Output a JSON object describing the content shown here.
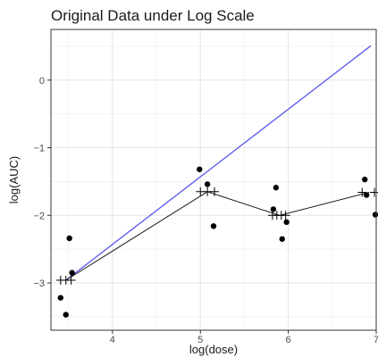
{
  "chart_data": {
    "type": "scatter",
    "title": "Original Data under Log Scale",
    "xlabel": "log(dose)",
    "ylabel": "log(AUC)",
    "xlim": [
      3.3,
      7.0
    ],
    "ylim": [
      -3.7,
      0.75
    ],
    "x_ticks": [
      4,
      5,
      6,
      7
    ],
    "y_ticks": [
      0,
      -1,
      -2,
      -3
    ],
    "grid": true,
    "points": [
      {
        "x": 3.41,
        "y": -3.22
      },
      {
        "x": 3.47,
        "y": -3.47
      },
      {
        "x": 3.51,
        "y": -2.34
      },
      {
        "x": 3.54,
        "y": -2.85
      },
      {
        "x": 4.99,
        "y": -1.32
      },
      {
        "x": 5.08,
        "y": -1.54
      },
      {
        "x": 5.15,
        "y": -2.16
      },
      {
        "x": 5.83,
        "y": -1.91
      },
      {
        "x": 5.86,
        "y": -1.59
      },
      {
        "x": 5.93,
        "y": -2.35
      },
      {
        "x": 5.98,
        "y": -2.1
      },
      {
        "x": 6.87,
        "y": -1.47
      },
      {
        "x": 6.89,
        "y": -1.7
      },
      {
        "x": 6.99,
        "y": -1.99
      }
    ],
    "mean_line": {
      "color": "#1a1a1a",
      "points": [
        {
          "x": 3.47,
          "y": -2.96
        },
        {
          "x": 5.08,
          "y": -1.65
        },
        {
          "x": 5.9,
          "y": -2.0
        },
        {
          "x": 6.92,
          "y": -1.66
        }
      ]
    },
    "crosses": [
      {
        "x": 3.41,
        "y": -2.96
      },
      {
        "x": 3.47,
        "y": -2.96
      },
      {
        "x": 3.53,
        "y": -2.96
      },
      {
        "x": 5.0,
        "y": -1.65
      },
      {
        "x": 5.08,
        "y": -1.65
      },
      {
        "x": 5.16,
        "y": -1.65
      },
      {
        "x": 5.82,
        "y": -2.0
      },
      {
        "x": 5.87,
        "y": -2.0
      },
      {
        "x": 5.92,
        "y": -2.0
      },
      {
        "x": 5.97,
        "y": -2.0
      },
      {
        "x": 6.84,
        "y": -1.66
      },
      {
        "x": 6.98,
        "y": -1.66
      }
    ],
    "reference_line": {
      "color": "#5555ee",
      "from": {
        "x": 3.47,
        "y": -2.96
      },
      "to": {
        "x": 6.94,
        "y": 0.51
      }
    },
    "colors": {
      "points": "#000000",
      "grid": "#e5e5e5",
      "panel_border": "#333333"
    }
  }
}
